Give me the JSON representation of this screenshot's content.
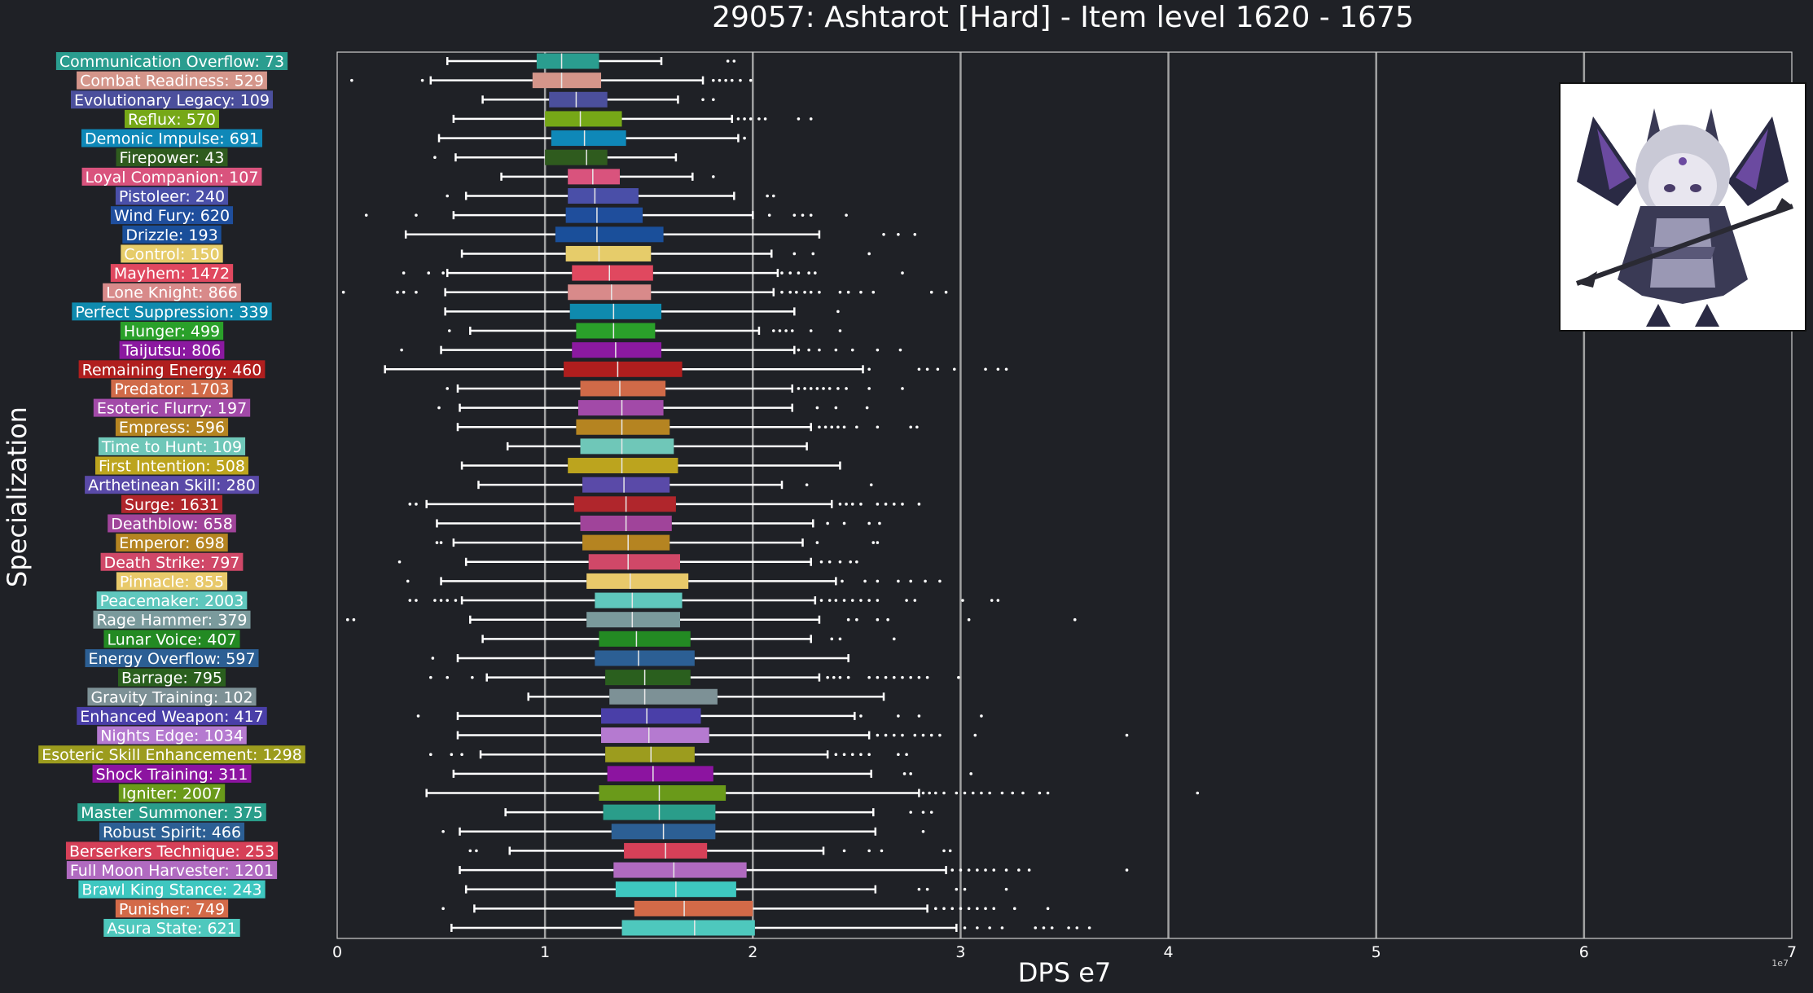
{
  "chart_data": {
    "type": "boxplot",
    "orientation": "horizontal",
    "title": "29057: Ashtarot [Hard] - Item level 1620 - 1675",
    "xlabel": "DPS e7",
    "ylabel": "Specialization",
    "x_offset_label": "1e7",
    "xlim": [
      0,
      7
    ],
    "xticks": [
      0,
      1,
      2,
      3,
      4,
      5,
      6,
      7
    ],
    "grid": "vertical",
    "background": "#1f2126",
    "categories": [
      {
        "label": "Communication Overflow: 73",
        "color": "#2a9d8f",
        "whislo": 0.53,
        "q1": 0.96,
        "med": 1.08,
        "q3": 1.26,
        "whishi": 1.56,
        "fliers": [
          1.88,
          1.91
        ]
      },
      {
        "label": "Combat Readiness: 529",
        "color": "#d4958a",
        "whislo": 0.45,
        "q1": 0.94,
        "med": 1.08,
        "q3": 1.27,
        "whishi": 1.76,
        "fliers": [
          0.07,
          0.41,
          1.81,
          1.84,
          1.87,
          1.9,
          1.94,
          1.99
        ]
      },
      {
        "label": "Evolutionary Legacy: 109",
        "color": "#4b4f9c",
        "whislo": 0.7,
        "q1": 1.02,
        "med": 1.15,
        "q3": 1.3,
        "whishi": 1.64,
        "fliers": [
          1.76,
          1.81
        ]
      },
      {
        "label": "Reflux: 570",
        "color": "#76a817",
        "whislo": 0.56,
        "q1": 1.0,
        "med": 1.17,
        "q3": 1.37,
        "whishi": 1.9,
        "fliers": [
          1.93,
          1.96,
          1.99,
          2.03,
          2.06,
          2.22,
          2.28
        ]
      },
      {
        "label": "Demonic Impulse: 691",
        "color": "#0f88b8",
        "whislo": 0.49,
        "q1": 1.03,
        "med": 1.19,
        "q3": 1.39,
        "whishi": 1.93,
        "fliers": [
          1.96
        ]
      },
      {
        "label": "Firepower: 43",
        "color": "#2f5b1e",
        "whislo": 0.57,
        "q1": 1.0,
        "med": 1.2,
        "q3": 1.3,
        "whishi": 1.63,
        "fliers": [
          0.47
        ]
      },
      {
        "label": "Loyal Companion: 107",
        "color": "#d9537d",
        "whislo": 0.79,
        "q1": 1.11,
        "med": 1.23,
        "q3": 1.36,
        "whishi": 1.71,
        "fliers": [
          1.81
        ]
      },
      {
        "label": "Pistoleer: 240",
        "color": "#4a4fa8",
        "whislo": 0.62,
        "q1": 1.11,
        "med": 1.24,
        "q3": 1.45,
        "whishi": 1.91,
        "fliers": [
          0.53,
          2.07,
          2.1
        ]
      },
      {
        "label": "Wind Fury: 620",
        "color": "#1f4e9c",
        "whislo": 0.56,
        "q1": 1.1,
        "med": 1.25,
        "q3": 1.47,
        "whishi": 2.0,
        "fliers": [
          0.14,
          0.38,
          2.08,
          2.2,
          2.24,
          2.28,
          2.45
        ]
      },
      {
        "label": "Drizzle: 193",
        "color": "#1a4f9a",
        "whislo": 0.33,
        "q1": 1.05,
        "med": 1.25,
        "q3": 1.57,
        "whishi": 2.32,
        "fliers": [
          2.63,
          2.7,
          2.78
        ]
      },
      {
        "label": "Control: 150",
        "color": "#e6cc6a",
        "whislo": 0.6,
        "q1": 1.1,
        "med": 1.26,
        "q3": 1.51,
        "whishi": 2.09,
        "fliers": [
          2.2,
          2.29,
          2.56
        ]
      },
      {
        "label": "Mayhem: 1472",
        "color": "#e0485f",
        "whislo": 0.53,
        "q1": 1.13,
        "med": 1.31,
        "q3": 1.52,
        "whishi": 2.12,
        "fliers": [
          0.32,
          0.44,
          0.51,
          2.14,
          2.18,
          2.22,
          2.27,
          2.3,
          2.72
        ]
      },
      {
        "label": "Lone Knight: 866",
        "color": "#d88a8a",
        "whislo": 0.52,
        "q1": 1.11,
        "med": 1.32,
        "q3": 1.51,
        "whishi": 2.1,
        "fliers": [
          0.03,
          0.29,
          0.32,
          0.38,
          2.14,
          2.18,
          2.21,
          2.25,
          2.28,
          2.32,
          2.42,
          2.46,
          2.52,
          2.58,
          2.86,
          2.93
        ]
      },
      {
        "label": "Perfect Suppression: 339",
        "color": "#0f8aae",
        "whislo": 0.52,
        "q1": 1.12,
        "med": 1.33,
        "q3": 1.56,
        "whishi": 2.2,
        "fliers": [
          2.41
        ]
      },
      {
        "label": "Hunger: 499",
        "color": "#2aa02a",
        "whislo": 0.64,
        "q1": 1.15,
        "med": 1.33,
        "q3": 1.53,
        "whishi": 2.03,
        "fliers": [
          0.54,
          2.1,
          2.13,
          2.16,
          2.19,
          2.28,
          2.42
        ]
      },
      {
        "label": "Taijutsu: 806",
        "color": "#8b19a0",
        "whislo": 0.5,
        "q1": 1.13,
        "med": 1.34,
        "q3": 1.56,
        "whishi": 2.2,
        "fliers": [
          0.31,
          2.22,
          2.27,
          2.32,
          2.4,
          2.48,
          2.6,
          2.71
        ]
      },
      {
        "label": "Remaining Energy: 460",
        "color": "#b01e1e",
        "whislo": 0.23,
        "q1": 1.09,
        "med": 1.35,
        "q3": 1.66,
        "whishi": 2.53,
        "fliers": [
          2.56,
          2.8,
          2.84,
          2.89,
          2.97,
          3.12,
          3.18,
          3.22
        ]
      },
      {
        "label": "Predator: 1703",
        "color": "#d06a48",
        "whislo": 0.58,
        "q1": 1.17,
        "med": 1.36,
        "q3": 1.58,
        "whishi": 2.19,
        "fliers": [
          0.53,
          2.22,
          2.25,
          2.28,
          2.31,
          2.34,
          2.37,
          2.41,
          2.45,
          2.56,
          2.72
        ]
      },
      {
        "label": "Esoteric Flurry: 197",
        "color": "#a24aa8",
        "whislo": 0.59,
        "q1": 1.16,
        "med": 1.37,
        "q3": 1.57,
        "whishi": 2.19,
        "fliers": [
          0.49,
          2.31,
          2.4,
          2.55
        ]
      },
      {
        "label": "Empress: 596",
        "color": "#b58421",
        "whislo": 0.58,
        "q1": 1.15,
        "med": 1.37,
        "q3": 1.6,
        "whishi": 2.28,
        "fliers": [
          2.32,
          2.35,
          2.38,
          2.41,
          2.44,
          2.5,
          2.6,
          2.76,
          2.79
        ]
      },
      {
        "label": "Time to Hunt: 109",
        "color": "#6fc7b8",
        "whislo": 0.82,
        "q1": 1.17,
        "med": 1.37,
        "q3": 1.62,
        "whishi": 2.26,
        "fliers": []
      },
      {
        "label": "First Intention: 508",
        "color": "#bca41e",
        "whislo": 0.6,
        "q1": 1.11,
        "med": 1.37,
        "q3": 1.64,
        "whishi": 2.42,
        "fliers": []
      },
      {
        "label": "Arthetinean Skill: 280",
        "color": "#5a4aa8",
        "whislo": 0.68,
        "q1": 1.18,
        "med": 1.38,
        "q3": 1.6,
        "whishi": 2.14,
        "fliers": [
          2.26,
          2.57
        ]
      },
      {
        "label": "Surge: 1631",
        "color": "#b0262c",
        "whislo": 0.43,
        "q1": 1.14,
        "med": 1.39,
        "q3": 1.63,
        "whishi": 2.38,
        "fliers": [
          0.35,
          0.38,
          2.42,
          2.45,
          2.48,
          2.52,
          2.6,
          2.64,
          2.68,
          2.72,
          2.8
        ]
      },
      {
        "label": "Deathblow: 658",
        "color": "#a0449a",
        "whislo": 0.48,
        "q1": 1.17,
        "med": 1.39,
        "q3": 1.61,
        "whishi": 2.29,
        "fliers": [
          2.36,
          2.44,
          2.56,
          2.61
        ]
      },
      {
        "label": "Emperor: 698",
        "color": "#b58421",
        "whislo": 0.56,
        "q1": 1.18,
        "med": 1.4,
        "q3": 1.6,
        "whishi": 2.24,
        "fliers": [
          0.48,
          0.5,
          2.31,
          2.58,
          2.6
        ]
      },
      {
        "label": "Death Strike: 797",
        "color": "#d04868",
        "whislo": 0.62,
        "q1": 1.21,
        "med": 1.4,
        "q3": 1.65,
        "whishi": 2.28,
        "fliers": [
          0.3,
          2.33,
          2.37,
          2.42,
          2.47,
          2.5
        ]
      },
      {
        "label": "Pinnacle: 855",
        "color": "#e8c96a",
        "whislo": 0.5,
        "q1": 1.2,
        "med": 1.41,
        "q3": 1.69,
        "whishi": 2.4,
        "fliers": [
          0.34,
          2.43,
          2.54,
          2.6,
          2.7,
          2.76,
          2.83,
          2.9
        ]
      },
      {
        "label": "Peacemaker: 2003",
        "color": "#5fc7bd",
        "whislo": 0.6,
        "q1": 1.24,
        "med": 1.42,
        "q3": 1.66,
        "whishi": 2.3,
        "fliers": [
          0.35,
          0.38,
          0.47,
          0.5,
          0.53,
          0.57,
          2.33,
          2.37,
          2.4,
          2.44,
          2.48,
          2.52,
          2.56,
          2.6,
          2.74,
          2.78,
          3.01,
          3.15,
          3.18
        ]
      },
      {
        "label": "Rage Hammer: 379",
        "color": "#7a9a9c",
        "whislo": 0.64,
        "q1": 1.2,
        "med": 1.42,
        "q3": 1.65,
        "whishi": 2.32,
        "fliers": [
          0.05,
          0.08,
          2.46,
          2.5,
          2.6,
          2.65,
          3.04,
          3.55
        ]
      },
      {
        "label": "Lunar Voice: 407",
        "color": "#238a23",
        "whislo": 0.7,
        "q1": 1.26,
        "med": 1.44,
        "q3": 1.7,
        "whishi": 2.28,
        "fliers": [
          2.38,
          2.42,
          2.68
        ]
      },
      {
        "label": "Energy Overflow: 597",
        "color": "#2c5f94",
        "whislo": 0.58,
        "q1": 1.24,
        "med": 1.45,
        "q3": 1.72,
        "whishi": 2.46,
        "fliers": [
          0.46
        ]
      },
      {
        "label": "Barrage: 795",
        "color": "#2a5f1e",
        "whislo": 0.72,
        "q1": 1.29,
        "med": 1.48,
        "q3": 1.7,
        "whishi": 2.32,
        "fliers": [
          0.45,
          0.53,
          0.65,
          2.36,
          2.39,
          2.42,
          2.46,
          2.56,
          2.6,
          2.64,
          2.68,
          2.72,
          2.76,
          2.8,
          2.84,
          2.99
        ]
      },
      {
        "label": "Gravity Training: 102",
        "color": "#7d9196",
        "whislo": 0.92,
        "q1": 1.31,
        "med": 1.48,
        "q3": 1.83,
        "whishi": 2.63,
        "fliers": []
      },
      {
        "label": "Enhanced Weapon: 417",
        "color": "#4a3fa8",
        "whislo": 0.58,
        "q1": 1.27,
        "med": 1.49,
        "q3": 1.75,
        "whishi": 2.49,
        "fliers": [
          0.39,
          2.52,
          2.7,
          2.8,
          3.1
        ]
      },
      {
        "label": "Nights Edge: 1034",
        "color": "#b57ad0",
        "whislo": 0.58,
        "q1": 1.27,
        "med": 1.5,
        "q3": 1.79,
        "whishi": 2.56,
        "fliers": [
          2.6,
          2.64,
          2.68,
          2.72,
          2.78,
          2.82,
          2.86,
          2.9,
          3.07,
          3.8
        ]
      },
      {
        "label": "Esoteric Skill Enhancement: 1298",
        "color": "#9c9c1e",
        "whislo": 0.69,
        "q1": 1.29,
        "med": 1.51,
        "q3": 1.72,
        "whishi": 2.36,
        "fliers": [
          0.45,
          0.55,
          0.6,
          2.4,
          2.44,
          2.48,
          2.52,
          2.56,
          2.7,
          2.74
        ]
      },
      {
        "label": "Shock Training: 311",
        "color": "#8c14a0",
        "whislo": 0.56,
        "q1": 1.3,
        "med": 1.52,
        "q3": 1.81,
        "whishi": 2.57,
        "fliers": [
          2.73,
          2.76,
          3.05
        ]
      },
      {
        "label": "Igniter: 2007",
        "color": "#6a9a1a",
        "whislo": 0.43,
        "q1": 1.26,
        "med": 1.55,
        "q3": 1.87,
        "whishi": 2.8,
        "fliers": [
          2.82,
          2.85,
          2.88,
          2.92,
          2.98,
          3.02,
          3.06,
          3.1,
          3.14,
          3.2,
          3.25,
          3.3,
          3.38,
          3.42,
          4.14
        ]
      },
      {
        "label": "Master Summoner: 375",
        "color": "#2a9d8a",
        "whislo": 0.81,
        "q1": 1.28,
        "med": 1.55,
        "q3": 1.82,
        "whishi": 2.58,
        "fliers": [
          2.76,
          2.82,
          2.86
        ]
      },
      {
        "label": "Robust Spirit: 466",
        "color": "#2c5f94",
        "whislo": 0.59,
        "q1": 1.32,
        "med": 1.57,
        "q3": 1.82,
        "whishi": 2.59,
        "fliers": [
          0.51,
          2.82
        ]
      },
      {
        "label": "Berserkers Technique: 253",
        "color": "#d64058",
        "whislo": 0.83,
        "q1": 1.38,
        "med": 1.58,
        "q3": 1.78,
        "whishi": 2.34,
        "fliers": [
          0.64,
          0.67,
          2.44,
          2.56,
          2.62,
          2.92,
          2.95
        ]
      },
      {
        "label": "Full Moon Harvester: 1201",
        "color": "#b06ac0",
        "whislo": 0.59,
        "q1": 1.33,
        "med": 1.62,
        "q3": 1.97,
        "whishi": 2.93,
        "fliers": [
          2.96,
          3.0,
          3.04,
          3.08,
          3.12,
          3.16,
          3.22,
          3.28,
          3.33,
          3.8
        ]
      },
      {
        "label": "Brawl King Stance: 243",
        "color": "#3ec7c0",
        "whislo": 0.62,
        "q1": 1.34,
        "med": 1.63,
        "q3": 1.92,
        "whishi": 2.59,
        "fliers": [
          2.8,
          2.84,
          2.98,
          3.02,
          3.22
        ]
      },
      {
        "label": "Punisher: 749",
        "color": "#d36a48",
        "whislo": 0.66,
        "q1": 1.43,
        "med": 1.67,
        "q3": 2.0,
        "whishi": 2.84,
        "fliers": [
          0.51,
          2.88,
          2.92,
          2.96,
          3.0,
          3.04,
          3.08,
          3.12,
          3.16,
          3.26,
          3.42
        ]
      },
      {
        "label": "Asura State: 621",
        "color": "#4ec8bd",
        "whislo": 0.55,
        "q1": 1.37,
        "med": 1.72,
        "q3": 2.01,
        "whishi": 2.98,
        "fliers": [
          3.02,
          3.08,
          3.14,
          3.2,
          3.36,
          3.4,
          3.44,
          3.52,
          3.56,
          3.62
        ]
      }
    ]
  }
}
